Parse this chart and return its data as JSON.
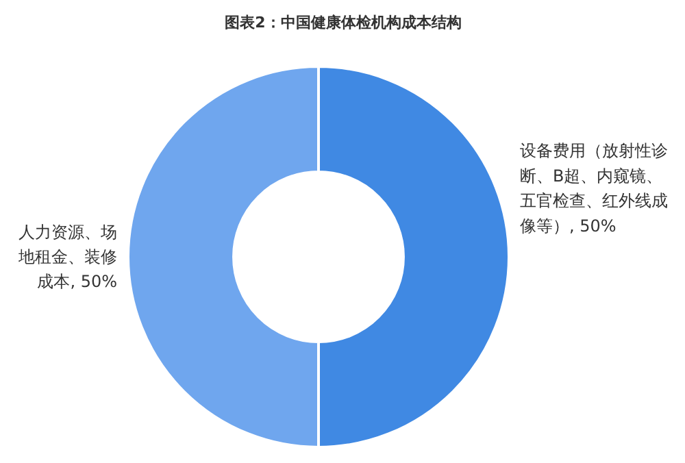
{
  "chart_data": {
    "type": "donut",
    "title": "图表2：中国健康体检机构成本结构",
    "categories": [
      "设备费用（放射性诊断、B超、内窥镜、五官检查、红外线成像等）",
      "人力资源、场地租金、装修成本"
    ],
    "values": [
      50,
      50
    ],
    "colors": [
      "#4089e3",
      "#6fa6ee"
    ],
    "value_labels": [
      "50%",
      "50%"
    ]
  }
}
